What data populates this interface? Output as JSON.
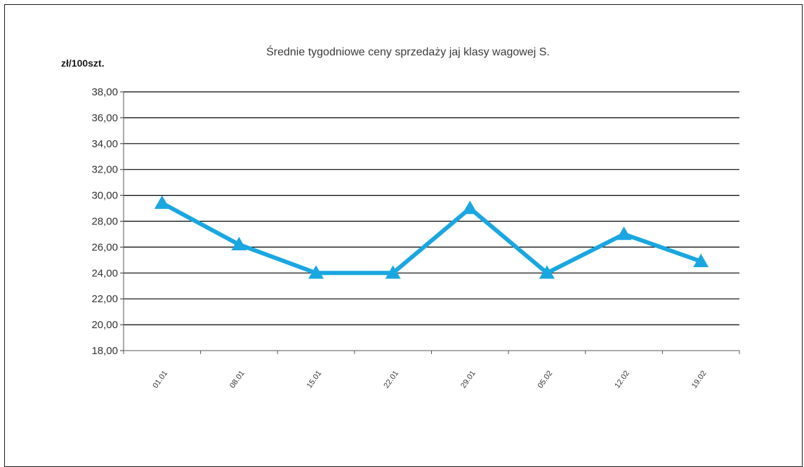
{
  "chart_data": {
    "type": "line",
    "title": "Średnie  tygodniowe  ceny  sprzedaży  jaj  klasy  wagowej  S.",
    "ylabel": "zł/100szt.",
    "xlabel": "",
    "categories": [
      "01.01",
      "08.01",
      "15.01",
      "22.01",
      "29.01",
      "05.02",
      "12.02",
      "19.02"
    ],
    "yticks": [
      "18,00",
      "20,00",
      "22,00",
      "24,00",
      "26,00",
      "28,00",
      "30,00",
      "32,00",
      "34,00",
      "36,00",
      "38,00"
    ],
    "ylim": [
      18,
      38
    ],
    "grid": true,
    "legend": "none",
    "series": [
      {
        "values": [
          29.4,
          26.2,
          24.0,
          24.0,
          29.0,
          24.0,
          27.0,
          24.9
        ],
        "color": "#1aa7e1",
        "marker": "triangle"
      }
    ]
  }
}
